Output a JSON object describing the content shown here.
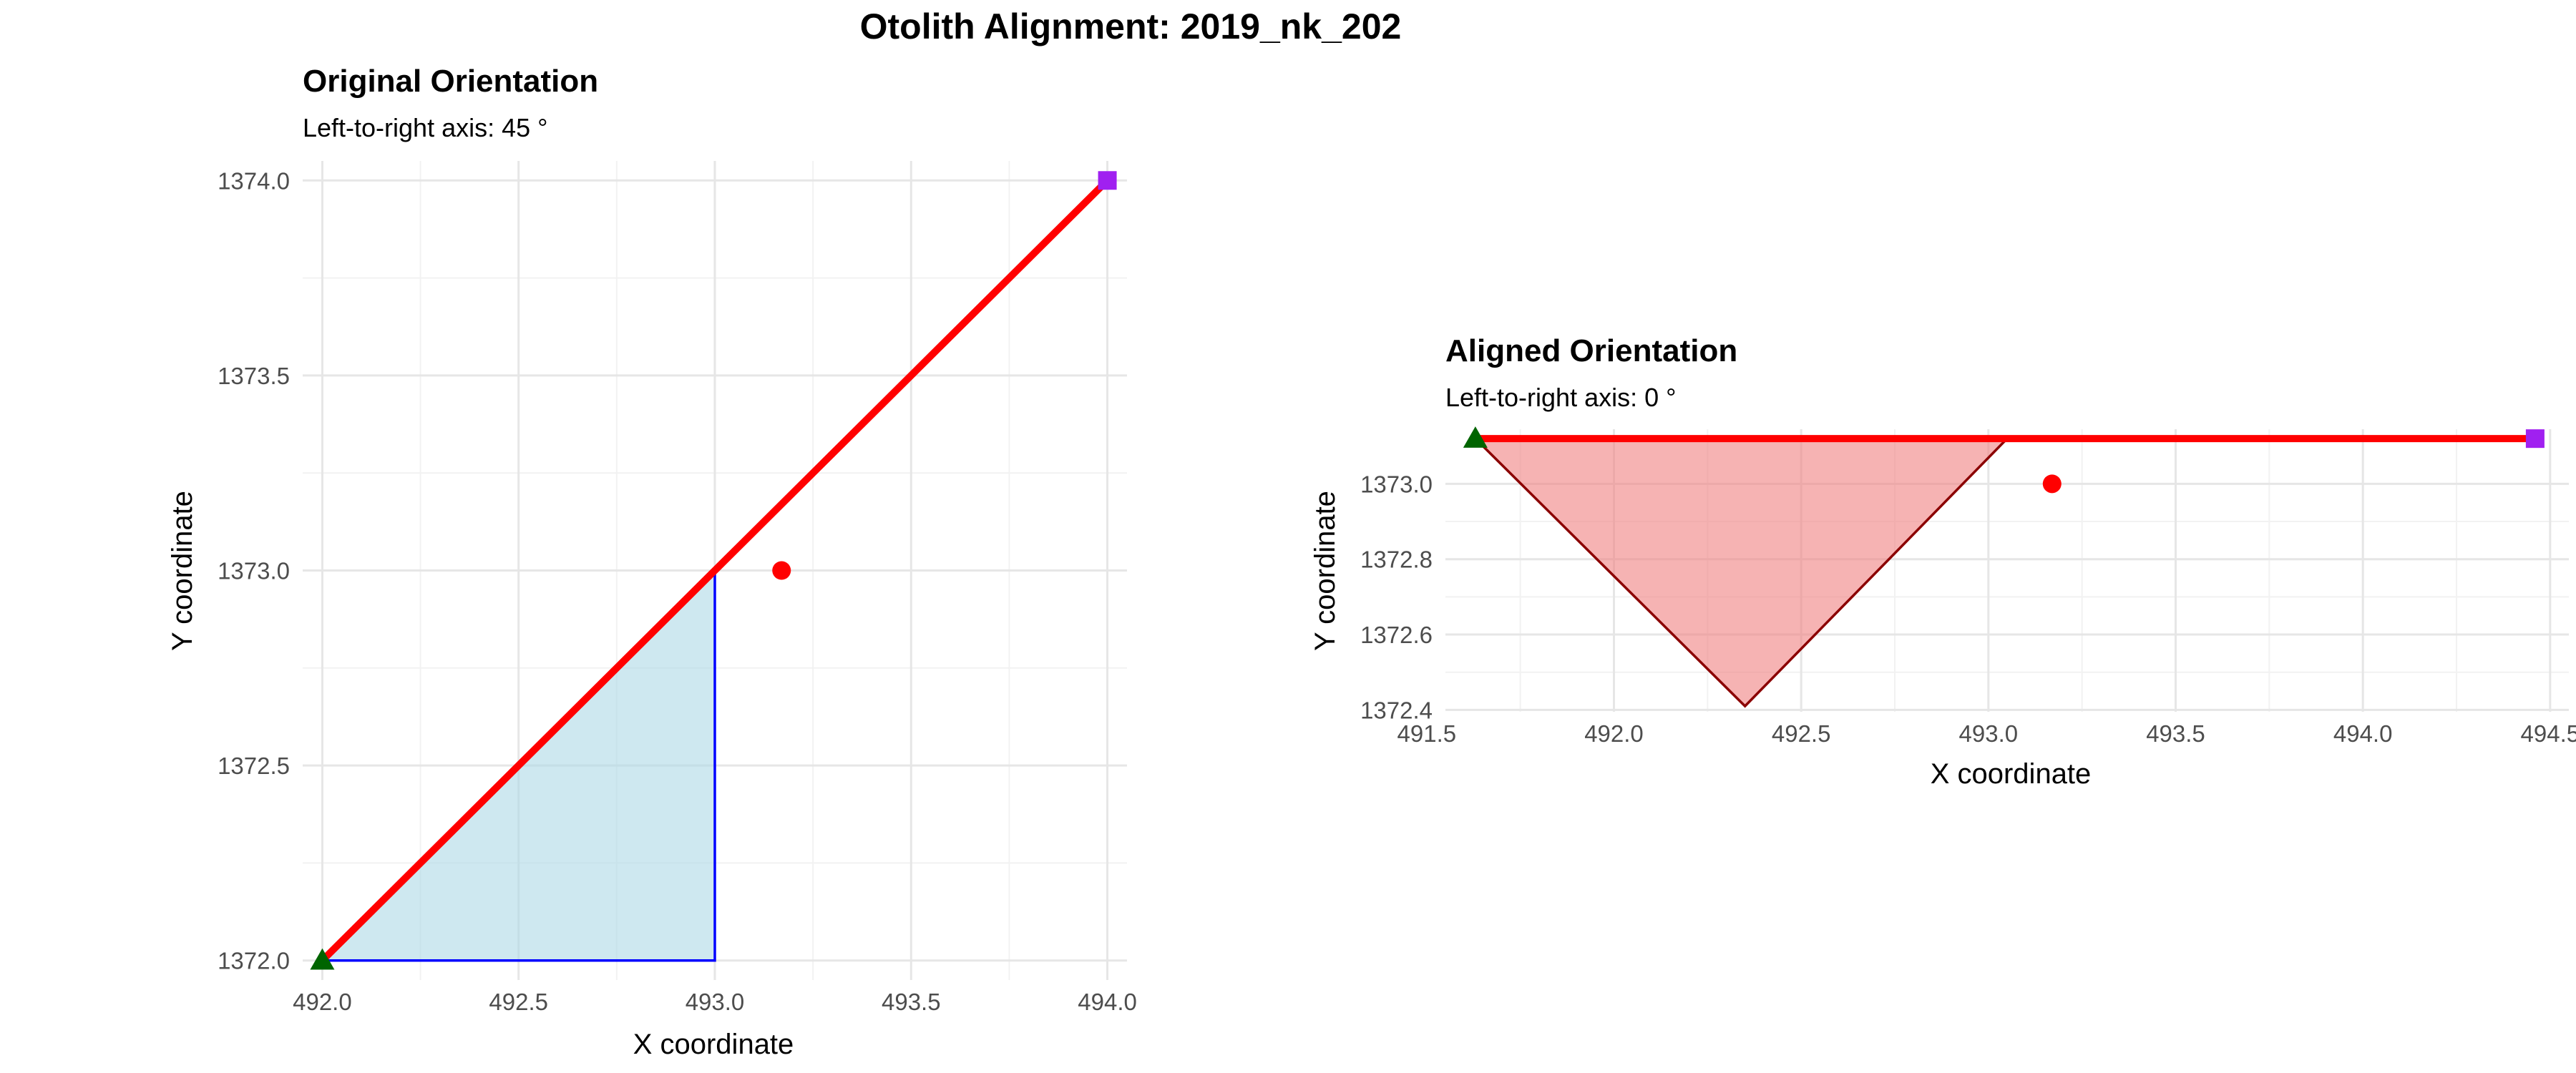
{
  "figure": {
    "title": "Otolith Alignment: 2019_nk_202"
  },
  "chart_data": [
    {
      "type": "scatter",
      "title": "Original Orientation",
      "subtitle": "Left-to-right axis: 45 °",
      "xlabel": "X coordinate",
      "ylabel": "Y coordinate",
      "xlim": [
        491.95,
        494.05
      ],
      "ylim": [
        1371.95,
        1374.05
      ],
      "xticks": [
        492.0,
        492.5,
        493.0,
        493.5,
        494.0
      ],
      "xtick_labels": [
        "492.0",
        "492.5",
        "493.0",
        "493.5",
        "494.0"
      ],
      "yticks": [
        1372.0,
        1372.5,
        1373.0,
        1373.5,
        1374.0
      ],
      "ytick_labels": [
        "1372.0",
        "1372.5",
        "1373.0",
        "1373.5",
        "1374.0"
      ],
      "grid": true,
      "polygon": {
        "points": [
          [
            492.0,
            1372.0
          ],
          [
            493.0,
            1373.0
          ],
          [
            493.0,
            1372.0
          ]
        ],
        "fill": "#add8e6",
        "fill_opacity": 0.6,
        "stroke": "#0000ff"
      },
      "axis_line": {
        "points": [
          [
            492.0,
            1372.0
          ],
          [
            494.0,
            1374.0
          ]
        ],
        "color": "#ff0000"
      },
      "start_point": {
        "x": 492.0,
        "y": 1372.0,
        "shape": "triangle",
        "color": "#006400"
      },
      "end_point": {
        "x": 494.0,
        "y": 1374.0,
        "shape": "square",
        "color": "#a020f0"
      },
      "center_point": {
        "x": 493.17,
        "y": 1373.0,
        "shape": "circle",
        "color": "#ff0000"
      }
    },
    {
      "type": "scatter",
      "title": "Aligned Orientation",
      "subtitle": "Left-to-right axis: 0 °",
      "xlabel": "X coordinate",
      "ylabel": "Y coordinate",
      "xlim": [
        491.55,
        494.55
      ],
      "ylim": [
        1372.395,
        1373.145
      ],
      "xticks": [
        491.5,
        492.0,
        492.5,
        493.0,
        493.5,
        494.0,
        494.5
      ],
      "xtick_labels": [
        "491.5",
        "492.0",
        "492.5",
        "493.0",
        "493.5",
        "494.0",
        "494.5"
      ],
      "yticks": [
        1372.4,
        1372.6,
        1372.8,
        1373.0
      ],
      "ytick_labels": [
        "1372.4",
        "1372.6",
        "1372.8",
        "1373.0"
      ],
      "grid": true,
      "polygon": {
        "points": [
          [
            491.63,
            1373.12
          ],
          [
            493.05,
            1373.12
          ],
          [
            492.35,
            1372.41
          ]
        ],
        "fill": "#f08080",
        "fill_opacity": 0.6,
        "stroke": "#8b0000"
      },
      "axis_line": {
        "points": [
          [
            491.63,
            1373.12
          ],
          [
            494.46,
            1373.12
          ]
        ],
        "color": "#ff0000"
      },
      "start_point": {
        "x": 491.63,
        "y": 1373.12,
        "shape": "triangle",
        "color": "#006400"
      },
      "end_point": {
        "x": 494.46,
        "y": 1373.12,
        "shape": "square",
        "color": "#a020f0"
      },
      "center_point": {
        "x": 493.17,
        "y": 1373.0,
        "shape": "circle",
        "color": "#ff0000"
      }
    }
  ]
}
